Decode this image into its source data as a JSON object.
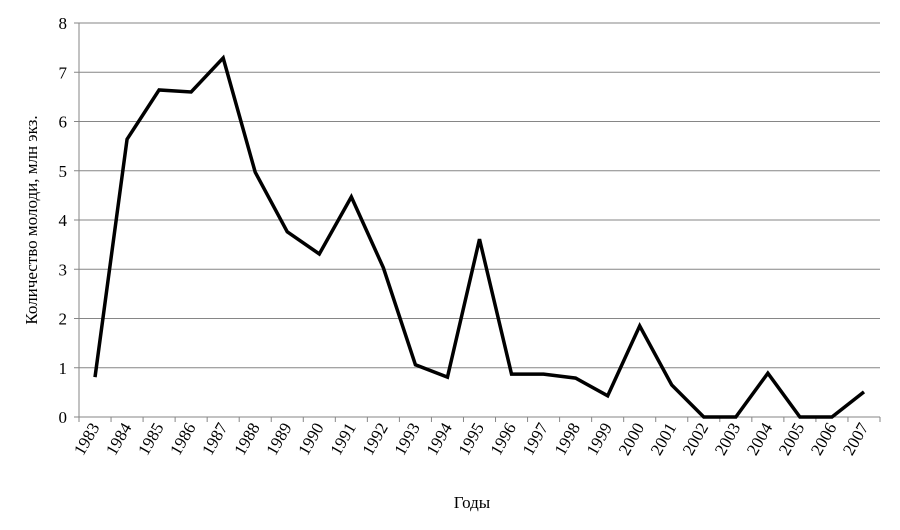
{
  "chart_data": {
    "type": "line",
    "title": "",
    "xlabel": "Годы",
    "ylabel": "Количество молоди,  млн экз.",
    "ylim": [
      0,
      8
    ],
    "yticks": [
      "0",
      "1",
      "2",
      "3",
      "4",
      "5",
      "6",
      "7",
      "8"
    ],
    "grid": true,
    "legend": "none",
    "line_color": "#000000",
    "grid_color": "#868686",
    "categories": [
      "1983",
      "1984",
      "1985",
      "1986",
      "1987",
      "1988",
      "1989",
      "1990",
      "1991",
      "1992",
      "1993",
      "1994",
      "1995",
      "1996",
      "1997",
      "1998",
      "1999",
      "2000",
      "2001",
      "2002",
      "2003",
      "2004",
      "2005",
      "2006",
      "2007"
    ],
    "series": [
      {
        "values": [
          0.81,
          5.64,
          6.64,
          6.6,
          7.29,
          4.97,
          3.76,
          3.31,
          4.47,
          3.03,
          1.06,
          0.81,
          3.61,
          0.87,
          0.87,
          0.79,
          0.43,
          1.85,
          0.65,
          0,
          0,
          0.89,
          0,
          0,
          0.51
        ]
      }
    ]
  }
}
